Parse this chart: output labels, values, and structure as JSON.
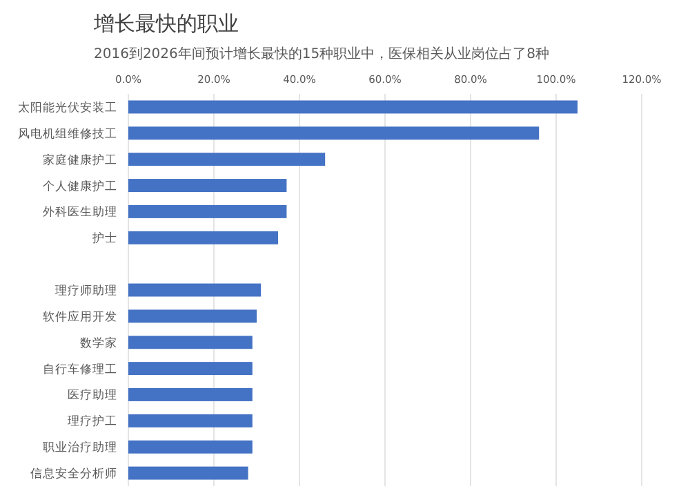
{
  "chart_data": {
    "type": "bar",
    "orientation": "horizontal",
    "title": "增长最快的职业",
    "subtitle": "2016到2026年间预计增长最快的15种职业中，医保相关从业岗位占了8种",
    "categories": [
      "太阳能光伏安装工",
      "风电机组维修技工",
      "家庭健康护工",
      "个人健康护工",
      "外科医生助理",
      "护士",
      null,
      "理疗师助理",
      "软件应用开发",
      "数学家",
      "自行车修理工",
      "医疗助理",
      "理疗护工",
      "职业治疗助理",
      "信息安全分析师"
    ],
    "values": [
      105,
      96,
      46,
      37,
      37,
      35,
      null,
      31,
      30,
      29,
      29,
      29,
      29,
      29,
      28
    ],
    "color": "#4472c4",
    "xlim": [
      0,
      120
    ],
    "xticks": [
      {
        "value": 0,
        "label": "0.0%"
      },
      {
        "value": 20,
        "label": "20.0%"
      },
      {
        "value": 40,
        "label": "40.0%"
      },
      {
        "value": 60,
        "label": "60.0%"
      },
      {
        "value": 80,
        "label": "80.0%"
      },
      {
        "value": 100,
        "label": "100.0%"
      },
      {
        "value": 120,
        "label": "120.0%"
      }
    ],
    "grid": "x"
  }
}
